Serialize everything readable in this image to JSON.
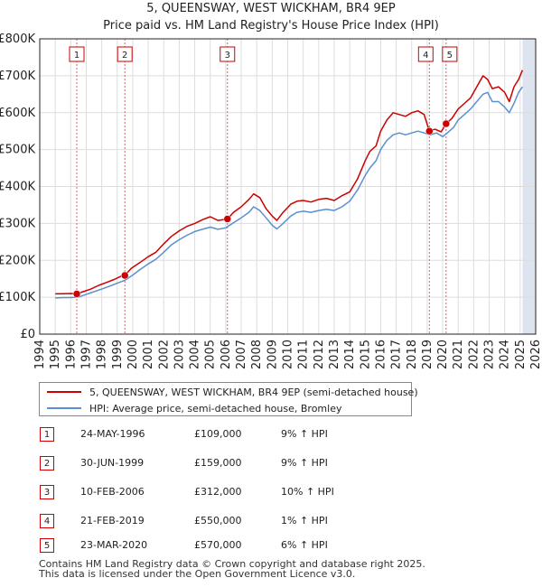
{
  "chart_data": {
    "type": "line",
    "title": "5, QUEENSWAY, WEST WICKHAM, BR4 9EP",
    "subtitle": "Price paid vs. HM Land Registry's House Price Index (HPI)",
    "xlim": [
      1994,
      2026
    ],
    "ylim": [
      0,
      800000
    ],
    "x_ticks": [
      "1994",
      "1995",
      "1996",
      "1997",
      "1998",
      "1999",
      "2000",
      "2001",
      "2002",
      "2003",
      "2004",
      "2005",
      "2006",
      "2007",
      "2008",
      "2009",
      "2010",
      "2011",
      "2012",
      "2013",
      "2014",
      "2015",
      "2016",
      "2017",
      "2018",
      "2019",
      "2020",
      "2021",
      "2022",
      "2023",
      "2024",
      "2025",
      "2026"
    ],
    "y_ticks": [
      {
        "value": 0,
        "label": "£0"
      },
      {
        "value": 100000,
        "label": "£100K"
      },
      {
        "value": 200000,
        "label": "£200K"
      },
      {
        "value": 300000,
        "label": "£300K"
      },
      {
        "value": 400000,
        "label": "£400K"
      },
      {
        "value": 500000,
        "label": "£500K"
      },
      {
        "value": 600000,
        "label": "£600K"
      },
      {
        "value": 700000,
        "label": "£700K"
      },
      {
        "value": 800000,
        "label": "£800K"
      }
    ],
    "grid": true,
    "series": [
      {
        "name": "5, QUEENSWAY, WEST WICKHAM, BR4 9EP (semi-detached house)",
        "color": "#cc0000",
        "x": [
          1995.0,
          1995.5,
          1996.0,
          1996.39,
          1996.8,
          1997.3,
          1997.8,
          1998.3,
          1998.8,
          1999.2,
          1999.49,
          1999.9,
          2000.5,
          2001.0,
          2001.5,
          2002.0,
          2002.5,
          2003.0,
          2003.5,
          2004.0,
          2004.5,
          2005.0,
          2005.5,
          2006.11,
          2006.5,
          2007.0,
          2007.5,
          2007.8,
          2008.2,
          2008.6,
          2009.0,
          2009.3,
          2009.7,
          2010.2,
          2010.6,
          2011.0,
          2011.5,
          2012.0,
          2012.5,
          2013.0,
          2013.5,
          2014.0,
          2014.5,
          2015.0,
          2015.3,
          2015.7,
          2016.0,
          2016.4,
          2016.8,
          2017.2,
          2017.6,
          2018.0,
          2018.4,
          2018.8,
          2019.14,
          2019.5,
          2019.9,
          2020.22,
          2020.6,
          2021.0,
          2021.4,
          2021.8,
          2022.2,
          2022.6,
          2022.9,
          2023.2,
          2023.6,
          2024.0,
          2024.3,
          2024.6,
          2024.9,
          2025.15
        ],
        "y": [
          109000,
          109500,
          110000,
          109000,
          115000,
          122000,
          132000,
          140000,
          148000,
          156000,
          159000,
          178000,
          195000,
          210000,
          222000,
          245000,
          265000,
          280000,
          292000,
          300000,
          310000,
          318000,
          308000,
          312000,
          330000,
          345000,
          365000,
          380000,
          370000,
          340000,
          320000,
          308000,
          330000,
          352000,
          360000,
          362000,
          358000,
          365000,
          368000,
          362000,
          375000,
          385000,
          420000,
          470000,
          495000,
          510000,
          550000,
          580000,
          600000,
          595000,
          590000,
          600000,
          605000,
          595000,
          550000,
          555000,
          548000,
          570000,
          585000,
          610000,
          625000,
          640000,
          670000,
          700000,
          690000,
          665000,
          670000,
          655000,
          630000,
          670000,
          690000,
          715000
        ]
      },
      {
        "name": "HPI: Average price, semi-detached house, Bromley",
        "color": "#5b8fd0",
        "x": [
          1995.0,
          1995.5,
          1996.0,
          1996.5,
          1997.0,
          1997.5,
          1998.0,
          1998.5,
          1999.0,
          1999.5,
          2000.0,
          2000.5,
          2001.0,
          2001.5,
          2002.0,
          2002.5,
          2003.0,
          2003.5,
          2004.0,
          2004.5,
          2005.0,
          2005.5,
          2006.0,
          2006.5,
          2007.0,
          2007.5,
          2007.8,
          2008.2,
          2008.6,
          2009.0,
          2009.3,
          2009.7,
          2010.2,
          2010.6,
          2011.0,
          2011.5,
          2012.0,
          2012.5,
          2013.0,
          2013.5,
          2014.0,
          2014.5,
          2015.0,
          2015.3,
          2015.7,
          2016.0,
          2016.4,
          2016.8,
          2017.2,
          2017.6,
          2018.0,
          2018.4,
          2018.8,
          2019.2,
          2019.6,
          2020.0,
          2020.3,
          2020.7,
          2021.0,
          2021.4,
          2021.8,
          2022.2,
          2022.6,
          2022.9,
          2023.2,
          2023.6,
          2024.0,
          2024.3,
          2024.6,
          2024.9,
          2025.15
        ],
        "y": [
          98000,
          99000,
          99000,
          100500,
          108000,
          115000,
          122000,
          130000,
          138000,
          146000,
          160000,
          176000,
          190000,
          203000,
          222000,
          242000,
          256000,
          268000,
          278000,
          284000,
          290000,
          284000,
          288000,
          302000,
          315000,
          330000,
          345000,
          335000,
          315000,
          295000,
          285000,
          300000,
          320000,
          330000,
          333000,
          330000,
          335000,
          338000,
          335000,
          345000,
          360000,
          390000,
          430000,
          450000,
          470000,
          500000,
          525000,
          540000,
          545000,
          540000,
          545000,
          550000,
          545000,
          540000,
          545000,
          535000,
          545000,
          560000,
          580000,
          595000,
          610000,
          630000,
          650000,
          655000,
          630000,
          630000,
          615000,
          600000,
          625000,
          655000,
          670000
        ]
      }
    ],
    "sales": [
      {
        "num": "1",
        "date": "24-MAY-1996",
        "x": 1996.39,
        "price": 109000,
        "price_label": "£109,000",
        "hpi": "9% ↑ HPI"
      },
      {
        "num": "2",
        "date": "30-JUN-1999",
        "x": 1999.49,
        "price": 159000,
        "price_label": "£159,000",
        "hpi": "9% ↑ HPI"
      },
      {
        "num": "3",
        "date": "10-FEB-2006",
        "x": 2006.11,
        "price": 312000,
        "price_label": "£312,000",
        "hpi": "10% ↑ HPI"
      },
      {
        "num": "4",
        "date": "21-FEB-2019",
        "x": 2019.14,
        "price": 550000,
        "price_label": "£550,000",
        "hpi": "1% ↑ HPI"
      },
      {
        "num": "5",
        "date": "23-MAR-2020",
        "x": 2020.22,
        "price": 570000,
        "price_label": "£570,000",
        "hpi": "6% ↑ HPI"
      }
    ],
    "colors": {
      "grid": "#dddddd",
      "shade": "#dde4f0",
      "border": "#222222"
    }
  },
  "legend": {
    "property_label": "5, QUEENSWAY, WEST WICKHAM, BR4 9EP (semi-detached house)",
    "hpi_label": "HPI: Average price, semi-detached house, Bromley"
  },
  "footer": {
    "line1": "Contains HM Land Registry data © Crown copyright and database right 2025.",
    "line2": "This data is licensed under the Open Government Licence v3.0."
  }
}
